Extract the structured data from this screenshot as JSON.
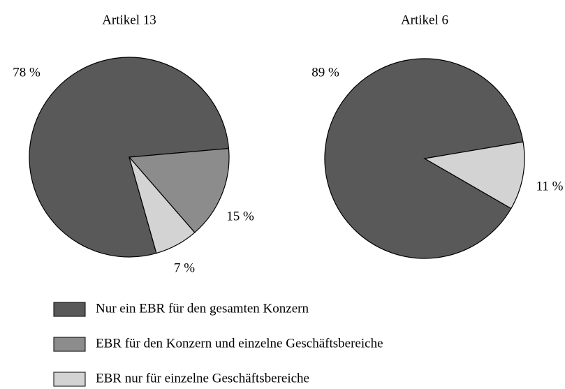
{
  "chart_data": [
    {
      "type": "pie",
      "title": "Artikel 13",
      "categories": [
        "Nur ein EBR für den gesamten Konzern",
        "EBR für den Konzern und einzelne Geschäftsbereiche",
        "EBR nur für einzelne Geschäftsbereiche"
      ],
      "values": [
        78,
        15,
        7
      ],
      "value_labels": [
        "78 %",
        "15 %",
        "7 %"
      ],
      "colors": [
        "#595959",
        "#8c8c8c",
        "#d3d3d3"
      ]
    },
    {
      "type": "pie",
      "title": "Artikel 6",
      "categories": [
        "Nur ein EBR für den gesamten Konzern",
        "EBR nur für einzelne Geschäftsbereiche"
      ],
      "values": [
        89,
        11
      ],
      "value_labels": [
        "89 %",
        "11 %"
      ],
      "colors": [
        "#595959",
        "#d3d3d3"
      ]
    }
  ]
}
